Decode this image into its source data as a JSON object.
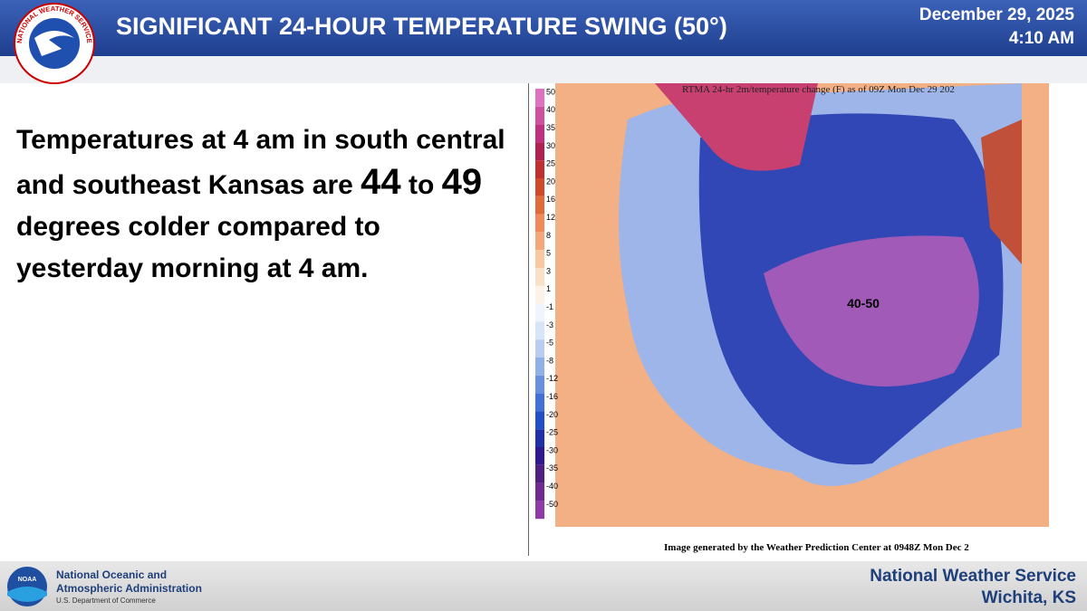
{
  "header": {
    "title": "SIGNIFICANT 24-HOUR TEMPERATURE SWING (50°)",
    "date": "December 29, 2025",
    "time": "4:10 AM",
    "logo_text": "NATIONAL WEATHER SERVICE"
  },
  "body": {
    "text_start": "Temperatures at 4 am in south central and southeast Kansas are",
    "low": "44",
    "to": "to",
    "high": "49",
    "text_end": "degrees colder compared to yesterday morning at 4 am."
  },
  "map": {
    "title": "RTMA 24-hr 2m/temperature change (F) as of 09Z Mon Dec 29 202",
    "annotation": "40-50",
    "caption": "Image generated by the Weather Prediction Center at 0948Z Mon Dec 2",
    "legend": {
      "labels": [
        "50",
        "40",
        "35",
        "30",
        "25",
        "20",
        "16",
        "12",
        "8",
        "5",
        "3",
        "1",
        "-1",
        "-3",
        "-5",
        "-8",
        "-12",
        "-16",
        "-20",
        "-25",
        "-30",
        "-35",
        "-40",
        "-50"
      ]
    }
  },
  "footer": {
    "noaa_logo": "NOAA",
    "noaa_line1": "National Oceanic and",
    "noaa_line2": "Atmospheric Administration",
    "noaa_line3": "U.S. Department of Commerce",
    "nws_line1": "National Weather Service",
    "nws_line2": "Wichita, KS"
  }
}
